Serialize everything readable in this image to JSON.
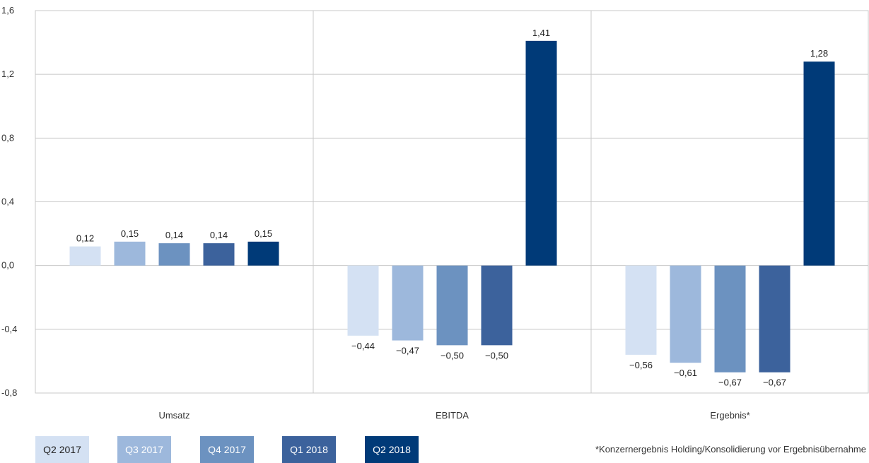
{
  "chart_data": {
    "type": "bar",
    "categories": [
      "Umsatz",
      "EBITDA",
      "Ergebnis*"
    ],
    "series": [
      {
        "name": "Q2 2017",
        "color": "#d4e1f3",
        "values": [
          0.12,
          -0.44,
          -0.56
        ],
        "labels": [
          "0,12",
          "−0,44",
          "−0,56"
        ]
      },
      {
        "name": "Q3 2017",
        "color": "#9db8dc",
        "values": [
          0.15,
          -0.47,
          -0.61
        ],
        "labels": [
          "0,15",
          "−0,47",
          "−0,61"
        ]
      },
      {
        "name": "Q4 2017",
        "color": "#6c92c0",
        "values": [
          0.14,
          -0.5,
          -0.67
        ],
        "labels": [
          "0,14",
          "−0,50",
          "−0,67"
        ]
      },
      {
        "name": "Q1 2018",
        "color": "#3c629c",
        "values": [
          0.14,
          -0.5,
          -0.67
        ],
        "labels": [
          "0,14",
          "−0,50",
          "−0,67"
        ]
      },
      {
        "name": "Q2 2018",
        "color": "#003a78",
        "values": [
          0.15,
          1.41,
          1.28
        ],
        "labels": [
          "0,15",
          "1,41",
          "1,28"
        ]
      }
    ],
    "ylim": [
      -0.8,
      1.6
    ],
    "yticks": [
      1.6,
      1.2,
      0.8,
      0.4,
      0.0,
      -0.4,
      -0.8
    ],
    "ytick_labels": [
      "1,6",
      "1,2",
      "0,8",
      "0,4",
      "0,0",
      "-0,4",
      "-0,8"
    ],
    "grid": true,
    "legend_position": "bottom-left",
    "footnote": "*Konzernergebnis Holding/Konsolidierung vor Ergebnisübernahme"
  },
  "legend_text_colors": [
    "#222222",
    "#ffffff",
    "#ffffff",
    "#ffffff",
    "#ffffff"
  ]
}
